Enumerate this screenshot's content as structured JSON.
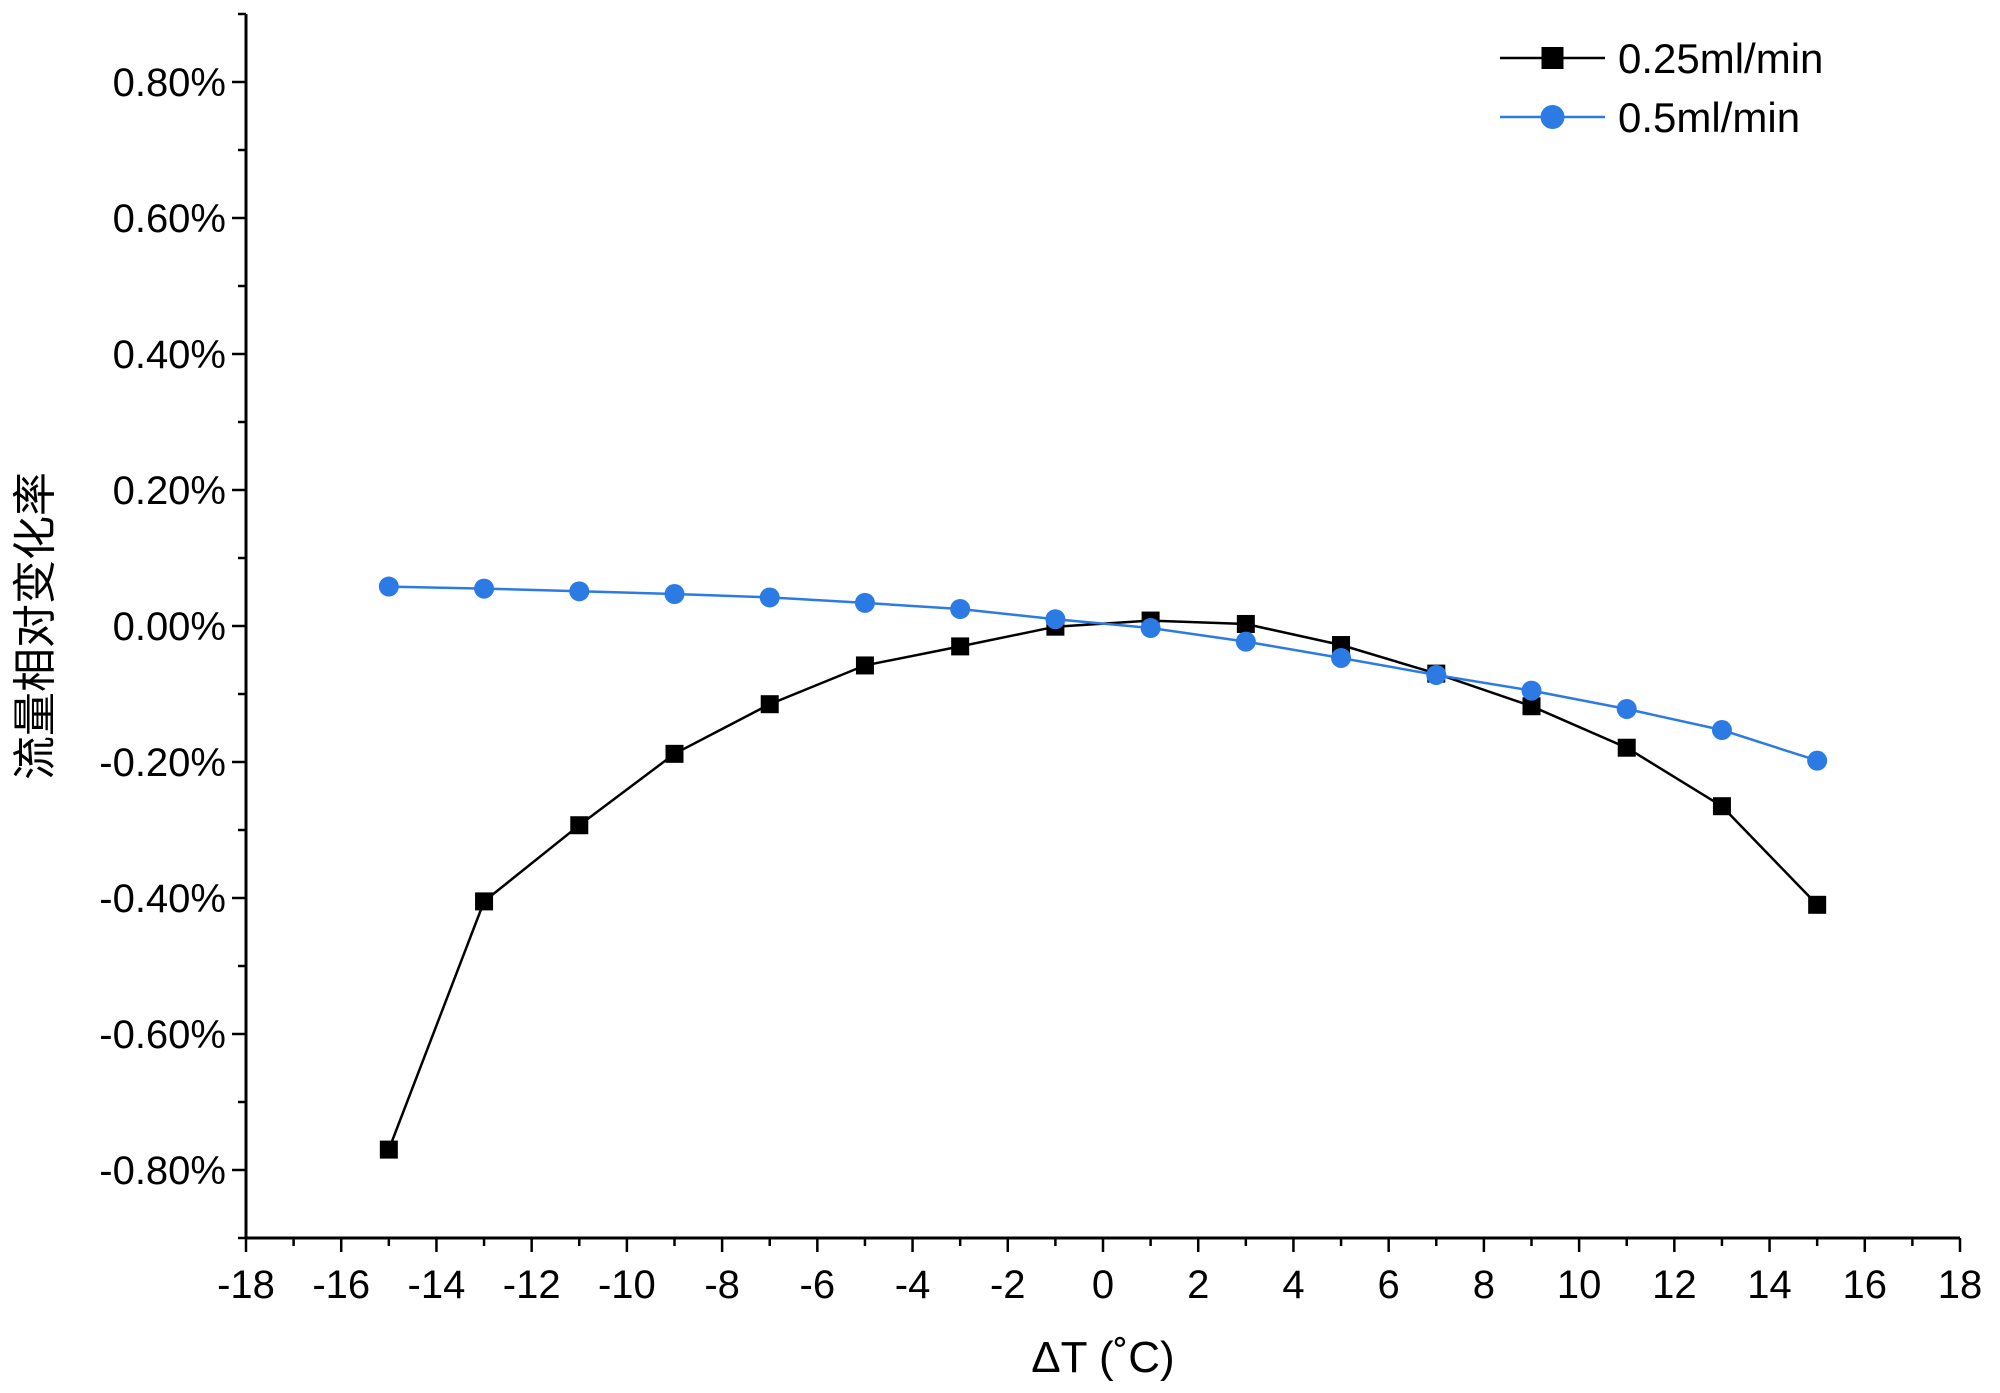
{
  "chart_data": {
    "type": "line",
    "title": "",
    "xlabel": "ΔT (˚C)",
    "ylabel": "流量相对变化率",
    "xlim": [
      -18,
      18
    ],
    "ylim": [
      -0.9,
      0.9
    ],
    "x_ticks": [
      -18,
      -16,
      -14,
      -12,
      -10,
      -8,
      -6,
      -4,
      -2,
      0,
      2,
      4,
      6,
      8,
      10,
      12,
      14,
      16,
      18
    ],
    "x_tick_labels": [
      "-18",
      "-16",
      "-14",
      "-12",
      "-10",
      "-8",
      "-6",
      "-4",
      "-2",
      "0",
      "2",
      "4",
      "6",
      "8",
      "10",
      "12",
      "14",
      "16",
      "18"
    ],
    "y_ticks": [
      -0.8,
      -0.6,
      -0.4,
      -0.2,
      0.0,
      0.2,
      0.4,
      0.6,
      0.8
    ],
    "y_tick_labels": [
      "-0.80%",
      "-0.60%",
      "-0.40%",
      "-0.20%",
      "0.00%",
      "0.20%",
      "0.40%",
      "0.60%",
      "0.80%"
    ],
    "grid": false,
    "legend_position": "top-right",
    "x": [
      -15,
      -13,
      -11,
      -9,
      -7,
      -5,
      -3,
      -1,
      1,
      3,
      5,
      7,
      9,
      11,
      13,
      15
    ],
    "series": [
      {
        "name": "0.25ml/min",
        "color": "#000000",
        "marker": "square",
        "values": [
          -0.77,
          -0.405,
          -0.293,
          -0.188,
          -0.115,
          -0.058,
          -0.03,
          -0.001,
          0.008,
          0.003,
          -0.028,
          -0.07,
          -0.118,
          -0.179,
          -0.265,
          -0.41
        ]
      },
      {
        "name": "0.5ml/min",
        "color": "#2c7be5",
        "marker": "circle",
        "values": [
          0.058,
          0.055,
          0.051,
          0.047,
          0.042,
          0.034,
          0.025,
          0.01,
          -0.003,
          -0.023,
          -0.047,
          -0.072,
          -0.095,
          -0.122,
          -0.153,
          -0.198
        ]
      }
    ]
  }
}
